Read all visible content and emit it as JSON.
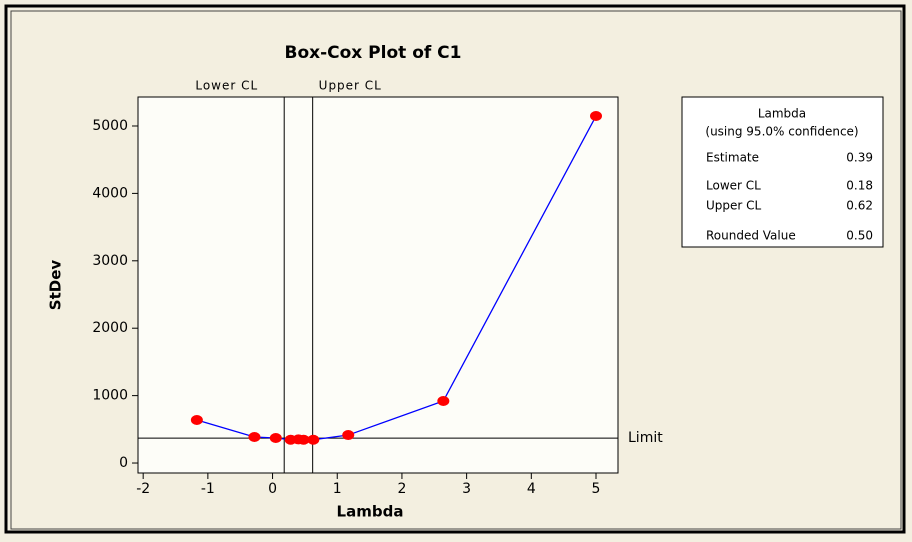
{
  "chart_data": {
    "type": "line",
    "title": "Box-Cox Plot of C1",
    "x_label": "Lambda",
    "y_label": "StDev",
    "series": [
      {
        "x": [
          -1.17,
          -0.28,
          0.05,
          0.28,
          0.4,
          0.48,
          0.63,
          1.17,
          2.64,
          5.0
        ],
        "values": [
          638,
          386,
          371,
          345,
          350,
          345,
          345,
          415,
          920,
          5148
        ],
        "color": "#0000ff",
        "marker_color": "#ff0000"
      }
    ],
    "xlim": [
      -2.08,
      5.34
    ],
    "ylim": [
      -148,
      5430
    ],
    "xticks": [
      -2,
      -1,
      0,
      1,
      2,
      3,
      4,
      5
    ],
    "yticks": [
      0,
      1000,
      2000,
      3000,
      4000,
      5000
    ],
    "vlines": [
      {
        "value": 0.18,
        "label": "Lower CL"
      },
      {
        "value": 0.62,
        "label": "Upper CL"
      }
    ],
    "hline": {
      "value": 370,
      "label": "Limit"
    }
  },
  "legend_table": {
    "title": "Lambda",
    "subtitle": "(using 95.0% confidence)",
    "rows": [
      [
        "Estimate",
        "0.39"
      ],
      [
        "Lower CL",
        "0.18"
      ],
      [
        "Upper CL",
        "0.62"
      ],
      [
        "Rounded Value",
        "0.50"
      ]
    ]
  }
}
